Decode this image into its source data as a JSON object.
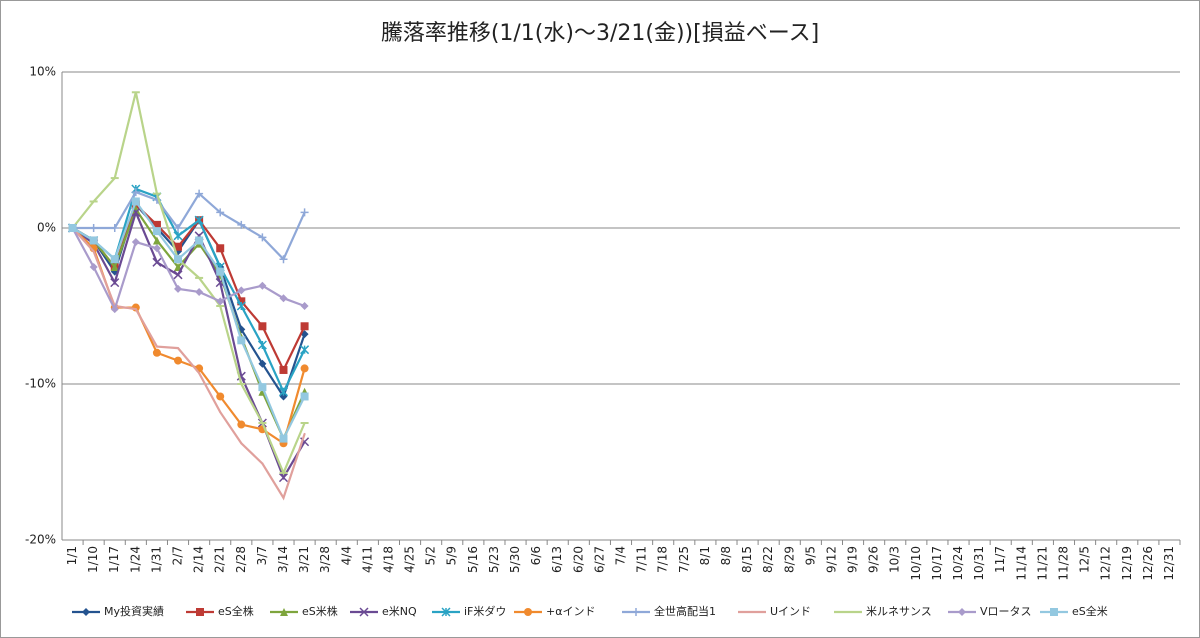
{
  "chart_data": {
    "type": "line",
    "title": "騰落率推移(1/1(水)～3/21(金))[損益ベース]",
    "categories": [
      "1/1",
      "1/10",
      "1/17",
      "1/24",
      "1/31",
      "2/7",
      "2/14",
      "2/21",
      "2/28",
      "3/7",
      "3/14",
      "3/21",
      "3/28",
      "4/4",
      "4/11",
      "4/18",
      "4/25",
      "5/2",
      "5/9",
      "5/16",
      "5/23",
      "5/30",
      "6/6",
      "6/13",
      "6/20",
      "6/27",
      "7/4",
      "7/11",
      "7/18",
      "7/25",
      "8/1",
      "8/8",
      "8/15",
      "8/22",
      "8/29",
      "9/5",
      "9/12",
      "9/19",
      "9/26",
      "10/3",
      "10/10",
      "10/17",
      "10/24",
      "10/31",
      "11/7",
      "11/14",
      "11/21",
      "11/28",
      "12/5",
      "12/12",
      "12/19",
      "12/26",
      "12/31"
    ],
    "ylim": [
      -20,
      10
    ],
    "yticks": [
      {
        "value": -20,
        "label": "-20%"
      },
      {
        "value": -10,
        "label": "-10%"
      },
      {
        "value": 0,
        "label": "0%"
      },
      {
        "value": 10,
        "label": "10%"
      }
    ],
    "grid": true,
    "legend": "bottom",
    "series": [
      {
        "name": "My投資実績",
        "color": "#24538f",
        "marker": "diamond",
        "values": [
          0,
          -0.8,
          -2.8,
          1.5,
          0,
          -1.5,
          0.5,
          -2.5,
          -6.5,
          -8.7,
          -10.8,
          -6.8,
          null,
          null,
          null,
          null,
          null,
          null,
          null,
          null,
          null,
          null,
          null,
          null,
          null,
          null,
          null,
          null,
          null,
          null,
          null,
          null,
          null,
          null,
          null,
          null,
          null,
          null,
          null,
          null,
          null,
          null,
          null,
          null,
          null,
          null,
          null,
          null,
          null,
          null,
          null,
          null,
          null
        ]
      },
      {
        "name": "eS全株",
        "color": "#be3a34",
        "marker": "square",
        "values": [
          0,
          -0.8,
          -2.5,
          1.5,
          0.2,
          -1.2,
          0.5,
          -1.3,
          -4.7,
          -6.3,
          -9.1,
          -6.3,
          null,
          null,
          null,
          null,
          null,
          null,
          null,
          null,
          null,
          null,
          null,
          null,
          null,
          null,
          null,
          null,
          null,
          null,
          null,
          null,
          null,
          null,
          null,
          null,
          null,
          null,
          null,
          null,
          null,
          null,
          null,
          null,
          null,
          null,
          null,
          null,
          null,
          null,
          null,
          null,
          null
        ]
      },
      {
        "name": "eS米株",
        "color": "#7ea53d",
        "marker": "triangle",
        "values": [
          0,
          -0.8,
          -2.5,
          1.2,
          -0.8,
          -2.5,
          -1,
          -3,
          -7,
          -10.5,
          -13.5,
          -10.5,
          null,
          null,
          null,
          null,
          null,
          null,
          null,
          null,
          null,
          null,
          null,
          null,
          null,
          null,
          null,
          null,
          null,
          null,
          null,
          null,
          null,
          null,
          null,
          null,
          null,
          null,
          null,
          null,
          null,
          null,
          null,
          null,
          null,
          null,
          null,
          null,
          null,
          null,
          null,
          null,
          null
        ]
      },
      {
        "name": "e米NQ",
        "color": "#6a4a93",
        "marker": "cross",
        "values": [
          0,
          -1,
          -3.5,
          1,
          -2.2,
          -3,
          -0.5,
          -3.5,
          -9.5,
          -12.5,
          -16,
          -13.7,
          null,
          null,
          null,
          null,
          null,
          null,
          null,
          null,
          null,
          null,
          null,
          null,
          null,
          null,
          null,
          null,
          null,
          null,
          null,
          null,
          null,
          null,
          null,
          null,
          null,
          null,
          null,
          null,
          null,
          null,
          null,
          null,
          null,
          null,
          null,
          null,
          null,
          null,
          null,
          null,
          null
        ]
      },
      {
        "name": "iF米ダウ",
        "color": "#2aa3c4",
        "marker": "star",
        "values": [
          0,
          -0.8,
          -2,
          2.5,
          2,
          -0.5,
          0.5,
          -2.5,
          -5,
          -7.5,
          -10.5,
          -7.8,
          null,
          null,
          null,
          null,
          null,
          null,
          null,
          null,
          null,
          null,
          null,
          null,
          null,
          null,
          null,
          null,
          null,
          null,
          null,
          null,
          null,
          null,
          null,
          null,
          null,
          null,
          null,
          null,
          null,
          null,
          null,
          null,
          null,
          null,
          null,
          null,
          null,
          null,
          null,
          null,
          null
        ]
      },
      {
        "name": "+αインド",
        "color": "#f08a2e",
        "marker": "circle",
        "values": [
          0,
          -1.3,
          -5.1,
          -5.1,
          -8,
          -8.5,
          -9,
          -10.8,
          -12.6,
          -12.9,
          -13.8,
          -9,
          null,
          null,
          null,
          null,
          null,
          null,
          null,
          null,
          null,
          null,
          null,
          null,
          null,
          null,
          null,
          null,
          null,
          null,
          null,
          null,
          null,
          null,
          null,
          null,
          null,
          null,
          null,
          null,
          null,
          null,
          null,
          null,
          null,
          null,
          null,
          null,
          null,
          null,
          null,
          null,
          null
        ]
      },
      {
        "name": "全世高配当1",
        "color": "#8fa8d8",
        "marker": "plus",
        "values": [
          0,
          0,
          0,
          2.3,
          1.8,
          0,
          2.2,
          1,
          0.2,
          -0.6,
          -2,
          1,
          null,
          null,
          null,
          null,
          null,
          null,
          null,
          null,
          null,
          null,
          null,
          null,
          null,
          null,
          null,
          null,
          null,
          null,
          null,
          null,
          null,
          null,
          null,
          null,
          null,
          null,
          null,
          null,
          null,
          null,
          null,
          null,
          null,
          null,
          null,
          null,
          null,
          null,
          null,
          null,
          null
        ]
      },
      {
        "name": "Uインド",
        "color": "#e0a09c",
        "marker": "none",
        "values": [
          0,
          -1.5,
          -5,
          -5.2,
          -7.6,
          -7.7,
          -9.3,
          -11.8,
          -13.8,
          -15.1,
          -17.3,
          -13.2,
          null,
          null,
          null,
          null,
          null,
          null,
          null,
          null,
          null,
          null,
          null,
          null,
          null,
          null,
          null,
          null,
          null,
          null,
          null,
          null,
          null,
          null,
          null,
          null,
          null,
          null,
          null,
          null,
          null,
          null,
          null,
          null,
          null,
          null,
          null,
          null,
          null,
          null,
          null,
          null,
          null
        ]
      },
      {
        "name": "米ルネサンス",
        "color": "#b9d48a",
        "marker": "dash",
        "values": [
          0,
          1.7,
          3.2,
          8.7,
          2.2,
          -2,
          -3.2,
          -5,
          -10,
          -12.5,
          -15.7,
          -12.5,
          null,
          null,
          null,
          null,
          null,
          null,
          null,
          null,
          null,
          null,
          null,
          null,
          null,
          null,
          null,
          null,
          null,
          null,
          null,
          null,
          null,
          null,
          null,
          null,
          null,
          null,
          null,
          null,
          null,
          null,
          null,
          null,
          null,
          null,
          null,
          null,
          null,
          null,
          null,
          null,
          null
        ]
      },
      {
        "name": "Vロータス",
        "color": "#a99bcb",
        "marker": "diamond",
        "values": [
          0,
          -2.5,
          -5.2,
          -0.9,
          -1.3,
          -3.9,
          -4.1,
          -4.7,
          -4,
          -3.7,
          -4.5,
          -5,
          null,
          null,
          null,
          null,
          null,
          null,
          null,
          null,
          null,
          null,
          null,
          null,
          null,
          null,
          null,
          null,
          null,
          null,
          null,
          null,
          null,
          null,
          null,
          null,
          null,
          null,
          null,
          null,
          null,
          null,
          null,
          null,
          null,
          null,
          null,
          null,
          null,
          null,
          null,
          null,
          null
        ]
      },
      {
        "name": "eS全米",
        "color": "#93c8e0",
        "marker": "square",
        "values": [
          0,
          -0.8,
          -2,
          1.7,
          -0.2,
          -2,
          -0.8,
          -2.8,
          -7.2,
          -10.2,
          -13.5,
          -10.8,
          null,
          null,
          null,
          null,
          null,
          null,
          null,
          null,
          null,
          null,
          null,
          null,
          null,
          null,
          null,
          null,
          null,
          null,
          null,
          null,
          null,
          null,
          null,
          null,
          null,
          null,
          null,
          null,
          null,
          null,
          null,
          null,
          null,
          null,
          null,
          null,
          null,
          null,
          null,
          null,
          null
        ]
      }
    ]
  }
}
